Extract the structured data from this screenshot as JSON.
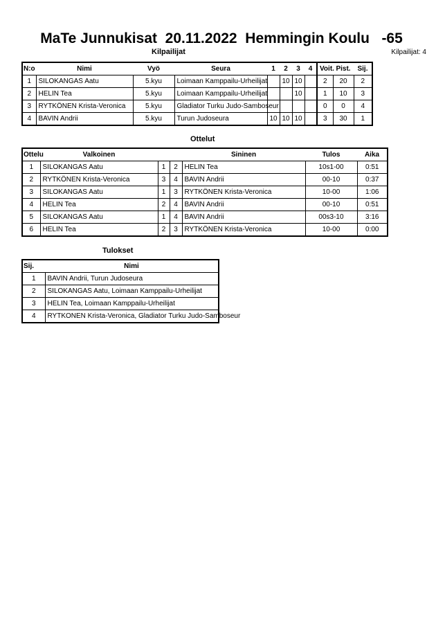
{
  "header": {
    "title": "MaTe Junnukisat  20.11.2022  Hemmingin Koulu   -65",
    "section": "Kilpailijat",
    "count_label": "Kilpailijat: 4"
  },
  "competitors": {
    "columns": [
      "N:o",
      "Nimi",
      "Vyö",
      "Seura",
      "1",
      "2",
      "3",
      "4",
      "Voit.",
      "Pist.",
      "Sij."
    ],
    "rows": [
      [
        "1",
        "SILOKANGAS Aatu",
        "5.kyu",
        "Loimaan Kamppailu-Urheilijat",
        "",
        "10",
        "10",
        "",
        "2",
        "20",
        "2"
      ],
      [
        "2",
        "HELIN Tea",
        "5.kyu",
        "Loimaan Kamppailu-Urheilijat",
        "",
        "",
        "10",
        "",
        "1",
        "10",
        "3"
      ],
      [
        "3",
        "RYTKÖNEN Krista-Veronica",
        "5.kyu",
        "Gladiator Turku Judo-Samboseur",
        "",
        "",
        "",
        "",
        "0",
        "0",
        "4"
      ],
      [
        "4",
        "BAVIN Andrii",
        "5.kyu",
        "Turun Judoseura",
        "10",
        "10",
        "10",
        "",
        "3",
        "30",
        "1"
      ]
    ]
  },
  "matches": {
    "title": "Ottelut",
    "columns": [
      "Ottelu",
      "Valkoinen",
      "",
      "",
      "Sininen",
      "Tulos",
      "Aika"
    ],
    "rows": [
      [
        "1",
        "SILOKANGAS Aatu",
        "1",
        "2",
        "HELIN Tea",
        "10s1-00",
        "0:51"
      ],
      [
        "2",
        "RYTKÖNEN Krista-Veronica",
        "3",
        "4",
        "BAVIN Andrii",
        "00-10",
        "0:37"
      ],
      [
        "3",
        "SILOKANGAS Aatu",
        "1",
        "3",
        "RYTKÖNEN Krista-Veronica",
        "10-00",
        "1:06"
      ],
      [
        "4",
        "HELIN Tea",
        "2",
        "4",
        "BAVIN Andrii",
        "00-10",
        "0:51"
      ],
      [
        "5",
        "SILOKANGAS Aatu",
        "1",
        "4",
        "BAVIN Andrii",
        "00s3-10",
        "3:16"
      ],
      [
        "6",
        "HELIN Tea",
        "2",
        "3",
        "RYTKÖNEN Krista-Veronica",
        "10-00",
        "0:00"
      ]
    ]
  },
  "results": {
    "title": "Tulokset",
    "columns": [
      "Sij.",
      "Nimi"
    ],
    "rows": [
      [
        "1",
        "BAVIN Andrii, Turun Judoseura"
      ],
      [
        "2",
        "SILOKANGAS Aatu, Loimaan Kamppailu-Urheilijat"
      ],
      [
        "3",
        "HELIN Tea, Loimaan Kamppailu-Urheilijat"
      ],
      [
        "4",
        "RYTKONEN Krista-Veronica, Gladiator Turku Judo-Samboseur"
      ]
    ]
  }
}
